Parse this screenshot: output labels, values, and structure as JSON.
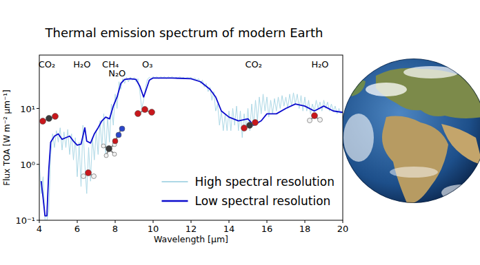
{
  "chart_data": {
    "type": "line",
    "title": "Thermal emission spectrum of modern Earth",
    "x_label": "Wavelength [μm]",
    "y_label": "Flux TOA [W m⁻² μm⁻¹]",
    "xlim": [
      4,
      20
    ],
    "xticks": [
      4,
      6,
      8,
      10,
      12,
      14,
      16,
      18,
      20
    ],
    "ylim": [
      0.1,
      90
    ],
    "yticks": [
      {
        "value": 0.1,
        "label": "10⁻¹"
      },
      {
        "value": 1,
        "label": "10⁰"
      },
      {
        "value": 10,
        "label": "10¹"
      }
    ],
    "log": "y",
    "grid": false,
    "legend": "lower right",
    "annotations": [
      {
        "text": "CO₂",
        "x": 4.4
      },
      {
        "text": "H₂O",
        "x": 6.25
      },
      {
        "text": "CH₄",
        "x": 7.75
      },
      {
        "text": "N₂O",
        "x": 8.1
      },
      {
        "text": "O₃",
        "x": 9.7
      },
      {
        "text": "CO₂",
        "x": 15.3
      },
      {
        "text": "H₂O",
        "x": 18.8
      }
    ],
    "series": [
      {
        "name": "High spectral resolution",
        "color": "#add8e6",
        "line_style": "solid",
        "x": [
          4,
          4.1,
          4.2,
          4.3,
          4.4,
          4.5,
          4.6,
          4.7,
          4.8,
          4.9,
          5,
          5.1,
          5.2,
          5.3,
          5.4,
          5.5,
          5.6,
          5.7,
          5.8,
          5.9,
          6,
          6.1,
          6.2,
          6.3,
          6.4,
          6.5,
          6.6,
          6.7,
          6.8,
          6.9,
          7,
          7.1,
          7.2,
          7.3,
          7.4,
          7.5,
          7.6,
          7.7,
          7.8,
          7.9,
          8,
          8.1,
          8.2,
          8.3,
          8.4,
          8.5,
          8.6,
          8.7,
          8.8,
          8.9,
          9,
          9.1,
          9.2,
          9.3,
          9.4,
          9.5,
          9.6,
          9.7,
          9.8,
          9.9,
          10,
          10.1,
          10.2,
          10.3,
          10.4,
          10.5,
          10.6,
          10.7,
          10.8,
          10.9,
          11,
          11.1,
          11.2,
          11.3,
          11.4,
          11.5,
          11.6,
          11.7,
          11.8,
          11.9,
          12,
          12.1,
          12.2,
          12.3,
          12.4,
          12.5,
          12.6,
          12.7,
          12.8,
          12.9,
          13,
          13.1,
          13.2,
          13.3,
          13.4,
          13.5,
          13.6,
          13.7,
          13.8,
          13.9,
          14,
          14.1,
          14.2,
          14.3,
          14.4,
          14.5,
          14.6,
          14.7,
          14.8,
          14.9,
          15,
          15.1,
          15.2,
          15.3,
          15.4,
          15.5,
          15.6,
          15.7,
          15.8,
          15.9,
          16,
          16.1,
          16.2,
          16.3,
          16.4,
          16.5,
          16.6,
          16.7,
          16.8,
          16.9,
          17,
          17.1,
          17.2,
          17.3,
          17.4,
          17.5,
          17.6,
          17.7,
          17.8,
          17.9,
          18,
          18.1,
          18.2,
          18.3,
          18.4,
          18.5,
          18.6,
          18.7,
          18.8,
          18.9,
          19,
          19.1,
          19.2,
          19.3,
          19.4,
          19.5,
          19.6,
          19.7,
          19.8,
          19.9,
          20
        ],
        "values": [
          1.0,
          0.3,
          0.6,
          0.1,
          0.1,
          0.15,
          1.5,
          3.5,
          2.0,
          4.0,
          2.5,
          4.5,
          1.8,
          3.8,
          2.0,
          4.2,
          1.5,
          3.5,
          1.2,
          3.0,
          0.6,
          2.5,
          0.4,
          5.0,
          1.0,
          0.3,
          2.0,
          0.5,
          3.0,
          1.2,
          4.0,
          1.5,
          6.0,
          2.0,
          8.0,
          1.5,
          7.0,
          2.5,
          12,
          5,
          18,
          10,
          30,
          22,
          34,
          28,
          36,
          30,
          36,
          32,
          36,
          30,
          34,
          20,
          10,
          14,
          24,
          33,
          36,
          34,
          37,
          35,
          37,
          34,
          37,
          35,
          37,
          34,
          37,
          35,
          37,
          35,
          36,
          34,
          37,
          35,
          36,
          34,
          36,
          35,
          36,
          33,
          35,
          32,
          34,
          28,
          32,
          24,
          28,
          20,
          24,
          14,
          20,
          9,
          12,
          5,
          9,
          4,
          8,
          4,
          9,
          4,
          10,
          5,
          11,
          4,
          9,
          3,
          8,
          4,
          10,
          4,
          12,
          5,
          14,
          6,
          16,
          8,
          18,
          9,
          16,
          7,
          14,
          8,
          15,
          9,
          16,
          10,
          17,
          11,
          16,
          10,
          18,
          11,
          19,
          12,
          18,
          10,
          17,
          9,
          16,
          9,
          14,
          8,
          12,
          9,
          14,
          10,
          13,
          9,
          14,
          10,
          13,
          9,
          12,
          9,
          11,
          8,
          10,
          8,
          9
        ]
      },
      {
        "name": "Low spectral resolution",
        "color": "#0a0acd",
        "line_style": "solid",
        "x": [
          4.1,
          4.2,
          4.3,
          4.4,
          4.5,
          4.6,
          4.8,
          5.0,
          5.2,
          5.4,
          5.6,
          5.8,
          6.0,
          6.2,
          6.4,
          6.5,
          6.7,
          6.9,
          7.1,
          7.3,
          7.5,
          7.7,
          7.9,
          8.1,
          8.3,
          8.5,
          8.8,
          9.1,
          9.3,
          9.5,
          9.6,
          9.8,
          10,
          11,
          12,
          12.5,
          13,
          13.3,
          13.6,
          14,
          14.5,
          15,
          15.3,
          15.7,
          16,
          16.5,
          17,
          17.5,
          18,
          18.5,
          19,
          19.5,
          20
        ],
        "values": [
          0.5,
          0.25,
          0.12,
          0.12,
          0.8,
          2.5,
          3.2,
          3.5,
          2.8,
          3.0,
          3.2,
          2.6,
          2.2,
          2.3,
          4.5,
          2.6,
          2.4,
          3.5,
          4.5,
          6,
          7,
          6.5,
          11,
          16,
          28,
          33,
          34,
          33,
          25,
          16,
          20,
          32,
          35,
          35,
          34,
          30,
          22,
          16,
          9,
          7,
          6,
          6.5,
          5,
          6,
          8,
          8,
          10,
          12,
          11,
          9,
          11,
          9,
          8.5
        ]
      }
    ]
  }
}
